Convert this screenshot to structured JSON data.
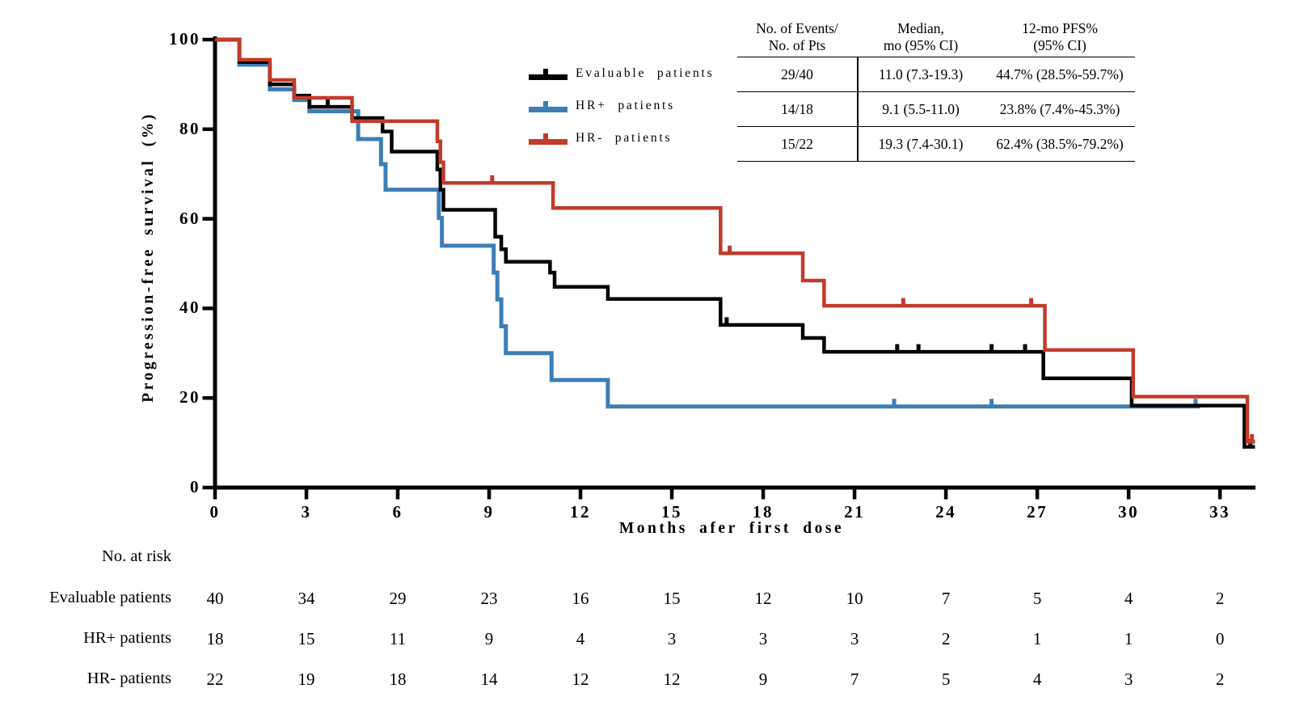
{
  "chart_data": {
    "type": "line",
    "subtype": "kaplan-meier-step",
    "title": "",
    "xlabel": "Months afer first dose",
    "ylabel": "Progression-free survival (%)",
    "xlim": [
      0,
      34.2
    ],
    "ylim": [
      0,
      100
    ],
    "x_ticks": [
      0,
      3,
      6,
      9,
      12,
      15,
      18,
      21,
      24,
      27,
      30,
      33
    ],
    "y_ticks": [
      0,
      20,
      40,
      60,
      80,
      100
    ],
    "grid": false,
    "legend_position": "upper-center-left",
    "series": [
      {
        "name": "Evaluable patients",
        "color": "#000000",
        "steps": [
          [
            0,
            100
          ],
          [
            0.8,
            95
          ],
          [
            1.8,
            90
          ],
          [
            2.6,
            87.5
          ],
          [
            3.1,
            85
          ],
          [
            4.5,
            82.5
          ],
          [
            5.5,
            79.5
          ],
          [
            5.8,
            75
          ],
          [
            7.3,
            71
          ],
          [
            7.4,
            66.5
          ],
          [
            7.5,
            62
          ],
          [
            9.2,
            56
          ],
          [
            9.4,
            53.2
          ],
          [
            9.55,
            50.4
          ],
          [
            11.0,
            48
          ],
          [
            11.15,
            44.8
          ],
          [
            12.9,
            42.1
          ],
          [
            16.6,
            36.3
          ],
          [
            19.3,
            33.4
          ],
          [
            20.0,
            30.3
          ],
          [
            27.2,
            24.4
          ],
          [
            30.1,
            18.3
          ],
          [
            33.8,
            9.1
          ]
        ],
        "end": 34.15,
        "censor_marks": [
          [
            3.7,
            85
          ],
          [
            16.8,
            36.3
          ],
          [
            22.4,
            30.3
          ],
          [
            23.1,
            30.3
          ],
          [
            25.5,
            30.3
          ],
          [
            26.6,
            30.3
          ],
          [
            34.0,
            9.1
          ]
        ]
      },
      {
        "name": "HR+ patients",
        "color": "#3d7eb5",
        "steps": [
          [
            0,
            100
          ],
          [
            0.8,
            94.4
          ],
          [
            1.8,
            88.9
          ],
          [
            2.6,
            86.5
          ],
          [
            3.1,
            84
          ],
          [
            4.7,
            77.8
          ],
          [
            5.45,
            72.2
          ],
          [
            5.6,
            66.5
          ],
          [
            7.35,
            60.2
          ],
          [
            7.45,
            54
          ],
          [
            9.15,
            48
          ],
          [
            9.27,
            42
          ],
          [
            9.4,
            36
          ],
          [
            9.55,
            30
          ],
          [
            11.05,
            24
          ],
          [
            12.9,
            18.1
          ]
        ],
        "end": 32.35,
        "censor_marks": [
          [
            22.3,
            18.1
          ],
          [
            25.5,
            18.1
          ],
          [
            32.2,
            18.1
          ]
        ]
      },
      {
        "name": "HR- patients",
        "color": "#c23b2c",
        "steps": [
          [
            0,
            100
          ],
          [
            0.8,
            95.5
          ],
          [
            1.8,
            91
          ],
          [
            2.6,
            87
          ],
          [
            4.5,
            81.8
          ],
          [
            7.3,
            77.3
          ],
          [
            7.4,
            72.6
          ],
          [
            7.5,
            68
          ],
          [
            11.1,
            62.4
          ],
          [
            16.6,
            52.3
          ],
          [
            19.3,
            46.2
          ],
          [
            20.0,
            40.6
          ],
          [
            27.25,
            30.7
          ],
          [
            30.15,
            20.3
          ],
          [
            33.9,
            10.2
          ]
        ],
        "end": 34.15,
        "censor_marks": [
          [
            9.1,
            68
          ],
          [
            16.9,
            52.3
          ],
          [
            22.6,
            40.6
          ],
          [
            26.8,
            40.6
          ],
          [
            34.05,
            10.2
          ]
        ]
      }
    ]
  },
  "legend": {
    "entries": [
      {
        "label": "Evaluable patients",
        "color": "#000000"
      },
      {
        "label": "HR+ patients",
        "color": "#3d7eb5"
      },
      {
        "label": "HR- patients",
        "color": "#c23b2c"
      }
    ]
  },
  "stats_table": {
    "headers": [
      [
        "No. of Events/",
        "No. of Pts"
      ],
      [
        "Median,",
        "mo (95% CI)"
      ],
      [
        "12-mo PFS%",
        "(95% CI)"
      ]
    ],
    "rows": [
      [
        "29/40",
        "11.0 (7.3-19.3)",
        "44.7% (28.5%-59.7%)"
      ],
      [
        "14/18",
        "9.1 (5.5-11.0)",
        "23.8% (7.4%-45.3%)"
      ],
      [
        "15/22",
        "19.3 (7.4-30.1)",
        "62.4% (38.5%-79.2%)"
      ]
    ]
  },
  "risk_table": {
    "title": "No. at risk",
    "months": [
      0,
      3,
      6,
      9,
      12,
      15,
      18,
      21,
      24,
      27,
      30,
      33
    ],
    "rows": [
      {
        "label": "Evaluable patients",
        "values": [
          40,
          34,
          29,
          23,
          16,
          15,
          12,
          10,
          7,
          5,
          4,
          2
        ]
      },
      {
        "label": "HR+ patients",
        "values": [
          18,
          15,
          11,
          9,
          4,
          3,
          3,
          3,
          2,
          1,
          1,
          0
        ]
      },
      {
        "label": "HR- patients",
        "values": [
          22,
          19,
          18,
          14,
          12,
          12,
          9,
          7,
          5,
          4,
          3,
          2
        ]
      }
    ]
  }
}
